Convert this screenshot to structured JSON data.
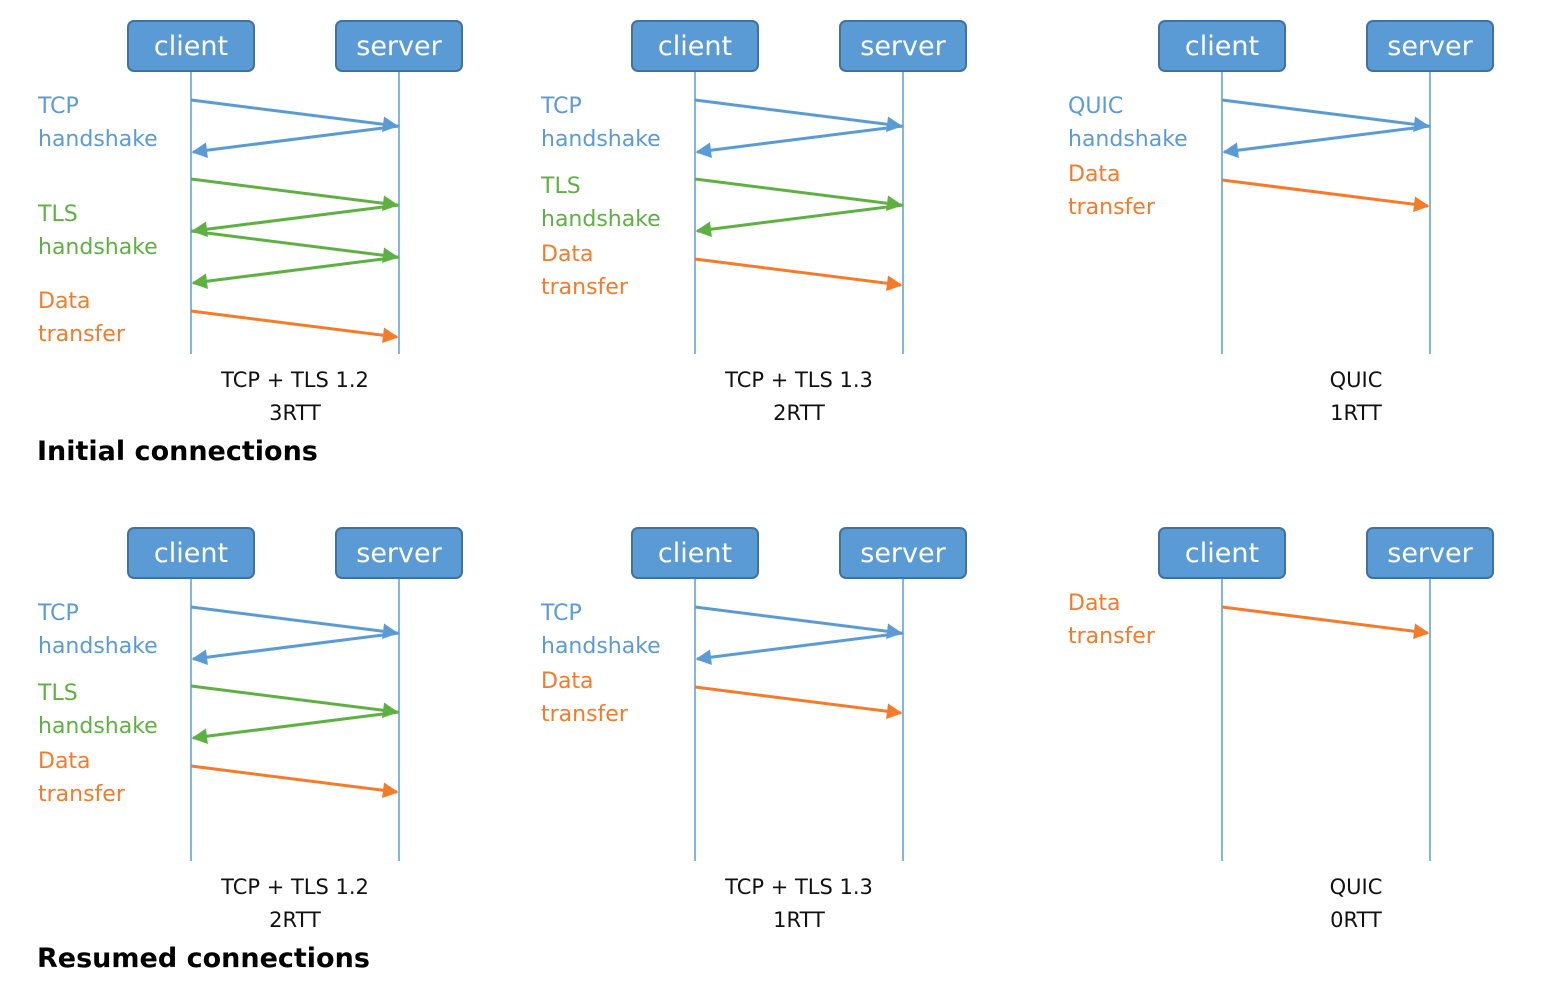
{
  "colors": {
    "box_fill": "#5b9bd5",
    "box_border": "#41729f",
    "lifeline": "#5b9bd5",
    "tcp": "#5b9bd5",
    "tls": "#5fb043",
    "data": "#f47b29",
    "quic": "#5b9bd5"
  },
  "node_labels": {
    "client": "client",
    "server": "server"
  },
  "sections": [
    {
      "title": "Initial connections",
      "panels": [
        {
          "caption_line1": "TCP + TLS 1.2",
          "caption_line2": "3RTT",
          "labels": [
            {
              "text": "TCP\nhandshake",
              "kind": "tcp"
            },
            {
              "text": "TLS\nhandshake",
              "kind": "tls"
            },
            {
              "text": "Data\ntransfer",
              "kind": "data"
            }
          ],
          "messages": [
            {
              "kind": "tcp",
              "dir": "to_server"
            },
            {
              "kind": "tcp",
              "dir": "to_client"
            },
            {
              "kind": "tls",
              "dir": "to_server"
            },
            {
              "kind": "tls",
              "dir": "to_client"
            },
            {
              "kind": "tls",
              "dir": "to_server"
            },
            {
              "kind": "tls",
              "dir": "to_client"
            },
            {
              "kind": "data",
              "dir": "to_server"
            }
          ]
        },
        {
          "caption_line1": "TCP + TLS 1.3",
          "caption_line2": "2RTT",
          "labels": [
            {
              "text": "TCP\nhandshake",
              "kind": "tcp"
            },
            {
              "text": "TLS\nhandshake",
              "kind": "tls"
            },
            {
              "text": "Data\ntransfer",
              "kind": "data"
            }
          ],
          "messages": [
            {
              "kind": "tcp",
              "dir": "to_server"
            },
            {
              "kind": "tcp",
              "dir": "to_client"
            },
            {
              "kind": "tls",
              "dir": "to_server"
            },
            {
              "kind": "tls",
              "dir": "to_client"
            },
            {
              "kind": "data",
              "dir": "to_server"
            }
          ]
        },
        {
          "caption_line1": "QUIC",
          "caption_line2": "1RTT",
          "labels": [
            {
              "text": "QUIC\nhandshake",
              "kind": "quic"
            },
            {
              "text": "Data\ntransfer",
              "kind": "data"
            }
          ],
          "messages": [
            {
              "kind": "quic",
              "dir": "to_server"
            },
            {
              "kind": "quic",
              "dir": "to_client"
            },
            {
              "kind": "data",
              "dir": "to_server"
            }
          ]
        }
      ]
    },
    {
      "title": "Resumed connections",
      "panels": [
        {
          "caption_line1": "TCP + TLS 1.2",
          "caption_line2": "2RTT",
          "labels": [
            {
              "text": "TCP\nhandshake",
              "kind": "tcp"
            },
            {
              "text": "TLS\nhandshake",
              "kind": "tls"
            },
            {
              "text": "Data\ntransfer",
              "kind": "data"
            }
          ],
          "messages": [
            {
              "kind": "tcp",
              "dir": "to_server"
            },
            {
              "kind": "tcp",
              "dir": "to_client"
            },
            {
              "kind": "tls",
              "dir": "to_server"
            },
            {
              "kind": "tls",
              "dir": "to_client"
            },
            {
              "kind": "data",
              "dir": "to_server"
            }
          ]
        },
        {
          "caption_line1": "TCP + TLS 1.3",
          "caption_line2": "1RTT",
          "labels": [
            {
              "text": "TCP\nhandshake",
              "kind": "tcp"
            },
            {
              "text": "Data\ntransfer",
              "kind": "data"
            }
          ],
          "messages": [
            {
              "kind": "tcp",
              "dir": "to_server"
            },
            {
              "kind": "tcp",
              "dir": "to_client"
            },
            {
              "kind": "data",
              "dir": "to_server"
            }
          ]
        },
        {
          "caption_line1": "QUIC",
          "caption_line2": "0RTT",
          "labels": [
            {
              "text": "Data\ntransfer",
              "kind": "data"
            }
          ],
          "messages": [
            {
              "kind": "data",
              "dir": "to_server"
            }
          ]
        }
      ]
    }
  ]
}
